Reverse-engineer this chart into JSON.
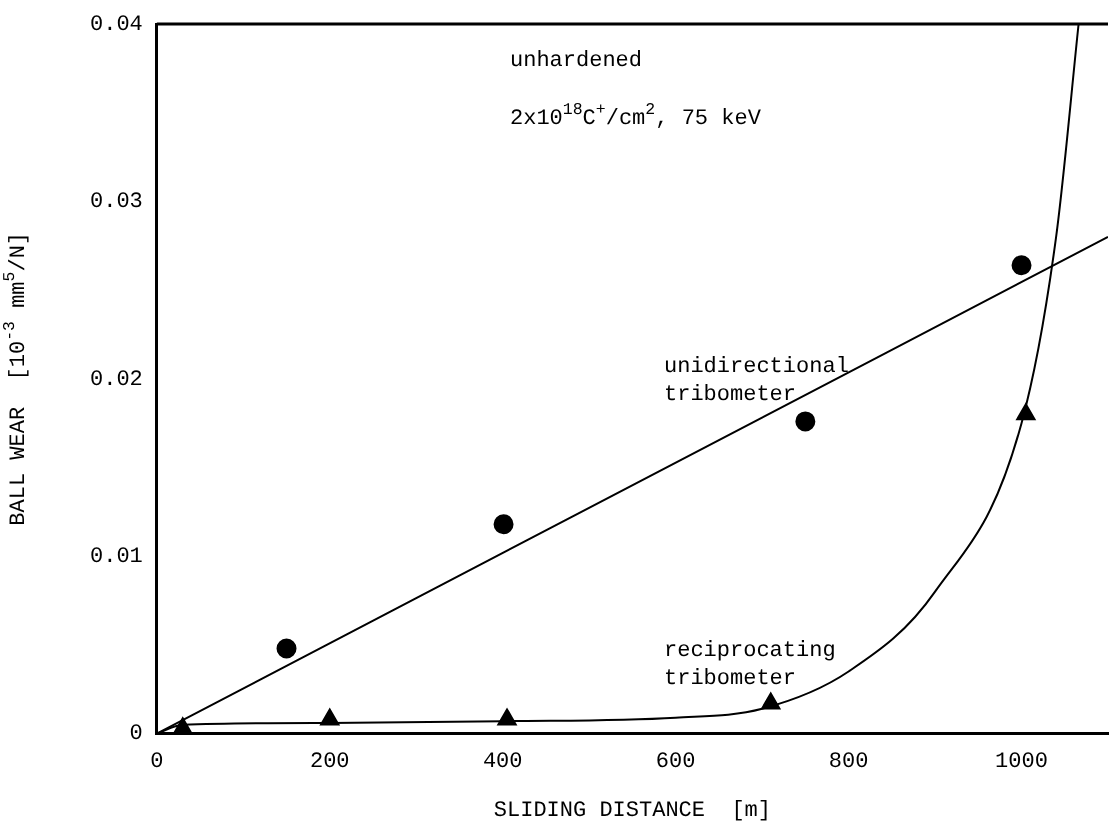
{
  "chart_data": {
    "type": "scatter",
    "xlabel": "SLIDING DISTANCE  [m]",
    "ylabel": "BALL WEAR  [10$^{-3}$ mm$^{5}$/N]",
    "annotations": [
      "unhardened",
      "2x10$^{18}$C$^{+}$/cm$^{2}$, 75 keV",
      "unidirectional\ntribometer",
      "reciprocating\ntribometer"
    ],
    "series": [
      {
        "type": "scatter",
        "marker": "circle",
        "color": "#000000",
        "x": [
          150,
          401,
          750,
          1000
        ],
        "values": [
          0.0048,
          0.0118,
          0.0176,
          0.0264
        ]
      },
      {
        "type": "scatter",
        "marker": "triangle",
        "color": "#000000",
        "x": [
          30,
          200,
          405,
          710,
          1005
        ],
        "values": [
          0.0003,
          0.0008,
          0.0008,
          0.0017,
          0.018
        ]
      },
      {
        "type": "line",
        "color": "#000000",
        "x": [
          0,
          1100
        ],
        "values": [
          0,
          0.028
        ]
      },
      {
        "type": "line",
        "color": "#000000",
        "x": [
          0,
          30,
          200,
          400,
          600,
          700,
          800,
          900,
          1000,
          1040,
          1066
        ],
        "values": [
          0,
          0.0005,
          0.0006,
          0.0007,
          0.0009,
          0.0014,
          0.0035,
          0.008,
          0.0175,
          0.028,
          0.04
        ]
      }
    ],
    "xlim": [
      0,
      1100
    ],
    "xticks": [
      0,
      200,
      400,
      600,
      800,
      1000
    ],
    "ylim": [
      0,
      0.04
    ],
    "yticks": [
      0,
      0.01,
      0.02,
      0.03,
      0.04
    ],
    "grid": false,
    "legend": false
  }
}
